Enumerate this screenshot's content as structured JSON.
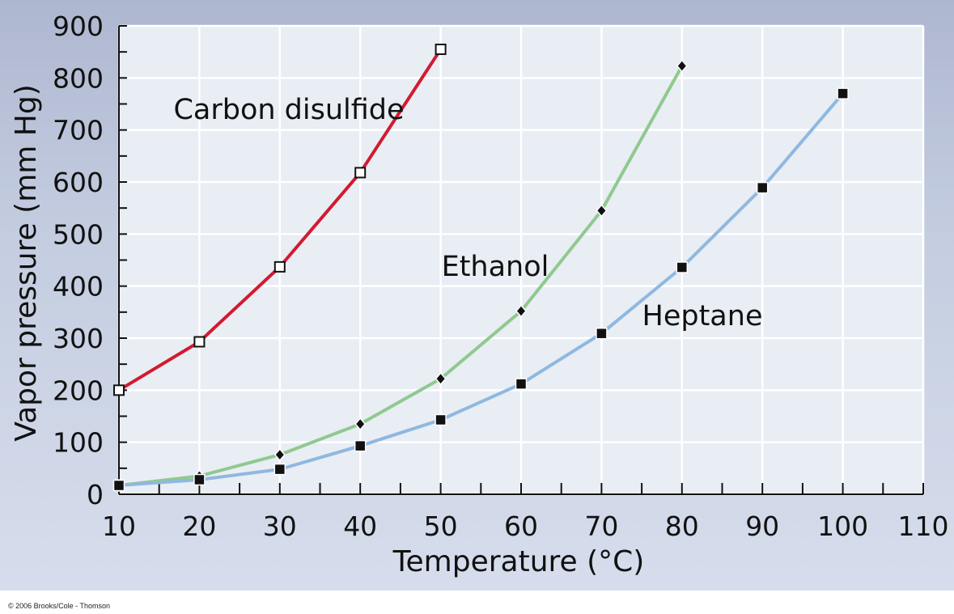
{
  "copyright": "© 2006 Brooks/Cole - Thomson",
  "chart_data": {
    "type": "line",
    "title": "",
    "xlabel": "Temperature (°C)",
    "ylabel": "Vapor pressure (mm Hg)",
    "xlim": [
      10,
      110
    ],
    "ylim": [
      0,
      900
    ],
    "x_ticks": [
      10,
      20,
      30,
      40,
      50,
      60,
      70,
      80,
      90,
      100,
      110
    ],
    "y_ticks": [
      0,
      100,
      200,
      300,
      400,
      500,
      600,
      700,
      800,
      900
    ],
    "grid": true,
    "legend": "inline labels",
    "series": [
      {
        "name": "Carbon disulfide",
        "color": "#d21a30",
        "marker": "open-square",
        "x": [
          10,
          20,
          30,
          40,
          50
        ],
        "y": [
          200,
          293,
          437,
          618,
          855
        ]
      },
      {
        "name": "Ethanol",
        "color": "#8fc98f",
        "marker": "diamond",
        "x": [
          10,
          20,
          30,
          40,
          50,
          60,
          70,
          80
        ],
        "y": [
          17,
          35,
          76,
          135,
          222,
          352,
          545,
          823
        ]
      },
      {
        "name": "Heptane",
        "color": "#8fb8e0",
        "marker": "filled-square",
        "x": [
          10,
          20,
          30,
          40,
          50,
          60,
          70,
          80,
          90,
          100
        ],
        "y": [
          17,
          28,
          48,
          93,
          143,
          212,
          309,
          436,
          589,
          770
        ]
      }
    ]
  }
}
